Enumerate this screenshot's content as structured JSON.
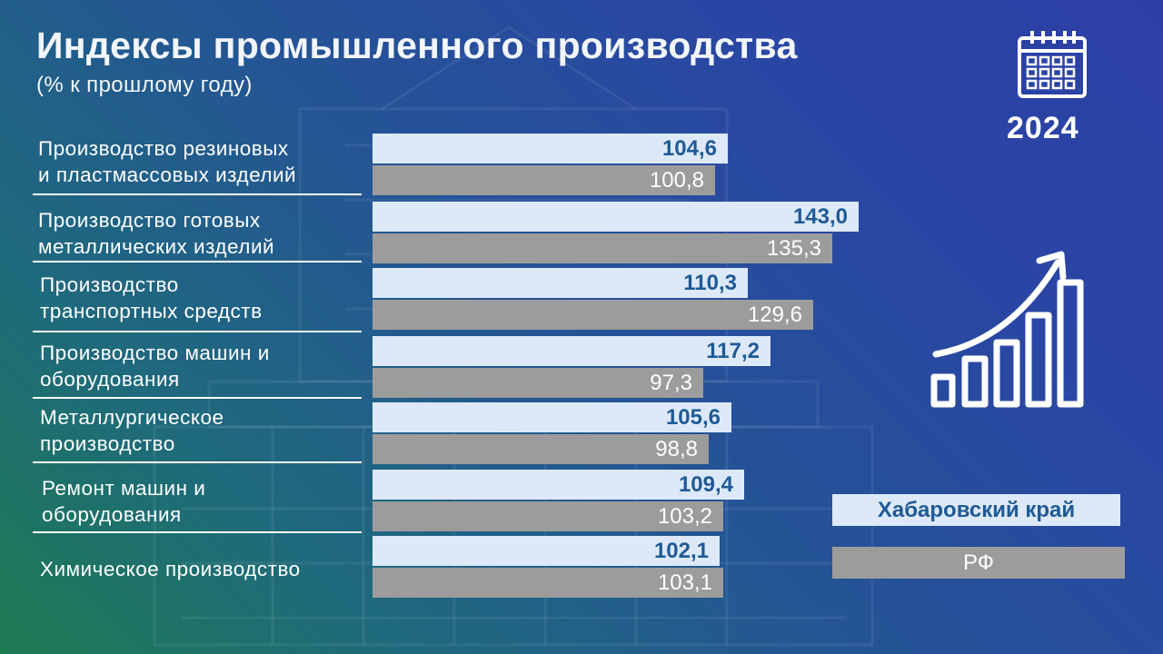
{
  "header": {
    "title": "Индексы промышленного производства",
    "subtitle": "(% к прошлому году)",
    "year": "2024"
  },
  "colors": {
    "region_bar": "#dde9f8",
    "region_text": "#1f5a96",
    "rf_bar": "#9c9c9c",
    "rf_text": "#ffffff"
  },
  "icons": [
    "calendar-icon",
    "growth-chart-icon"
  ],
  "chart_data": {
    "type": "bar",
    "orientation": "horizontal",
    "categories": [
      [
        "Производство резиновых",
        "и пластмассовых изделий"
      ],
      [
        "Производство готовых",
        "металлических изделий"
      ],
      [
        "Производство",
        "транспортных средств"
      ],
      [
        "Производство машин и",
        "оборудования"
      ],
      [
        "Металлургическое",
        "производство"
      ],
      [
        "Ремонт машин и",
        "оборудования"
      ],
      [
        "Химическое производство"
      ]
    ],
    "series": [
      {
        "name": "Хабаровский край",
        "values": [
          104.6,
          143.0,
          110.3,
          117.2,
          105.6,
          109.4,
          102.1
        ],
        "labels": [
          "104,6",
          "143,0",
          "110,3",
          "117,2",
          "105,6",
          "109,4",
          "102,1"
        ]
      },
      {
        "name": "РФ",
        "values": [
          100.8,
          135.3,
          129.6,
          97.3,
          98.8,
          103.2,
          103.1
        ],
        "labels": [
          "100,8",
          "135,3",
          "129,6",
          "97,3",
          "98,8",
          "103,2",
          "103,1"
        ]
      }
    ],
    "xlim": [
      0,
      143.0
    ],
    "grid": false,
    "legend": "right"
  }
}
